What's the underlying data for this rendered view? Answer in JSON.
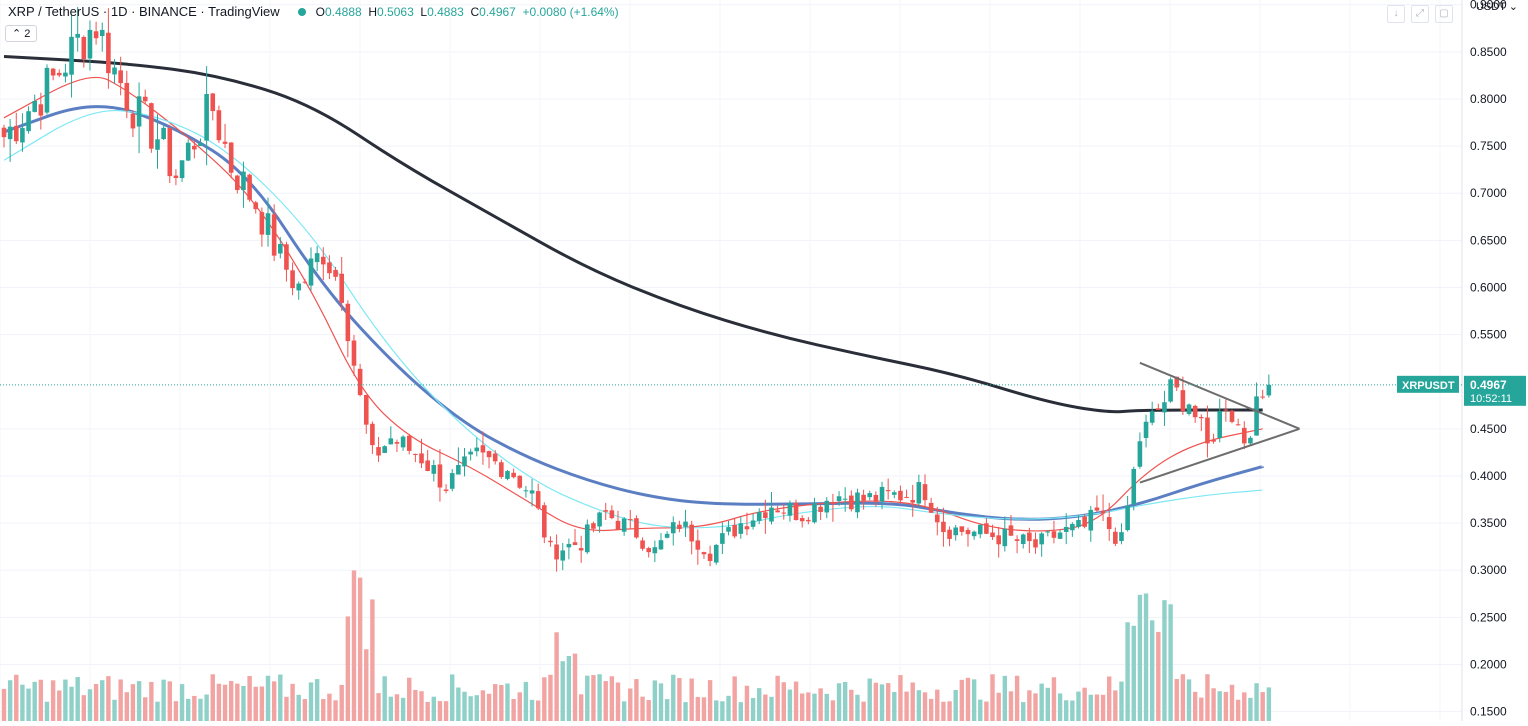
{
  "header": {
    "symbol": "XRP / TetherUS · 1D · BINANCE · TradingView",
    "ohlc": {
      "o": "0.4888",
      "h": "0.5063",
      "l": "0.4883",
      "c": "0.4967",
      "chg": "+0.0080 (+1.64%)"
    },
    "indicator_badge": "2",
    "currency": "USDT",
    "icons": [
      "arrow-down-icon",
      "expand-icon",
      "square-icon"
    ]
  },
  "price_label": {
    "name": "XRPUSDT",
    "value": "0.4967",
    "countdown": "10:52:11"
  },
  "colors": {
    "up": "#26a69a",
    "down": "#ef5350",
    "vol_up": "#8fd1c9",
    "vol_down": "#f2a4a3",
    "ma_dark": "#2a2e39",
    "ma_blue": "#5b7fc2",
    "ma_red": "#ef5350",
    "ma_cyan": "#7de8f5",
    "label_bg": "#26a69a"
  },
  "chart_data": {
    "type": "candlestick",
    "timeframe": "1D",
    "ylim": [
      0.14,
      0.905
    ],
    "yticks": [
      "0.9000",
      "0.8500",
      "0.8000",
      "0.7500",
      "0.7000",
      "0.6500",
      "0.6000",
      "0.5500",
      "0.4500",
      "0.4000",
      "0.3500",
      "0.3000",
      "0.2500",
      "0.2000",
      "0.1500"
    ],
    "last_price": 0.4967,
    "anchors": [
      [
        0,
        0.76
      ],
      [
        8,
        0.82
      ],
      [
        12,
        0.86
      ],
      [
        15,
        0.88
      ],
      [
        18,
        0.83
      ],
      [
        22,
        0.78
      ],
      [
        25,
        0.76
      ],
      [
        28,
        0.72
      ],
      [
        32,
        0.77
      ],
      [
        34,
        0.79
      ],
      [
        37,
        0.73
      ],
      [
        41,
        0.69
      ],
      [
        45,
        0.63
      ],
      [
        48,
        0.6
      ],
      [
        52,
        0.64
      ],
      [
        55,
        0.6
      ],
      [
        58,
        0.48
      ],
      [
        60,
        0.42
      ],
      [
        63,
        0.44
      ],
      [
        68,
        0.42
      ],
      [
        72,
        0.39
      ],
      [
        77,
        0.42
      ],
      [
        82,
        0.41
      ],
      [
        86,
        0.38
      ],
      [
        89,
        0.32
      ],
      [
        94,
        0.33
      ],
      [
        98,
        0.36
      ],
      [
        103,
        0.34
      ],
      [
        106,
        0.32
      ],
      [
        110,
        0.35
      ],
      [
        115,
        0.32
      ],
      [
        120,
        0.35
      ],
      [
        125,
        0.37
      ],
      [
        130,
        0.36
      ],
      [
        135,
        0.38
      ],
      [
        140,
        0.375
      ],
      [
        146,
        0.38
      ],
      [
        150,
        0.385
      ],
      [
        153,
        0.345
      ],
      [
        158,
        0.34
      ],
      [
        163,
        0.335
      ],
      [
        168,
        0.325
      ],
      [
        172,
        0.34
      ],
      [
        176,
        0.345
      ],
      [
        178,
        0.36
      ],
      [
        182,
        0.33
      ],
      [
        185,
        0.44
      ],
      [
        188,
        0.47
      ],
      [
        190,
        0.49
      ],
      [
        193,
        0.48
      ],
      [
        196,
        0.43
      ],
      [
        199,
        0.48
      ],
      [
        202,
        0.44
      ],
      [
        204,
        0.47
      ],
      [
        206,
        0.4967
      ]
    ],
    "ma_series": [
      {
        "period": "long",
        "color": "#2a2e39",
        "points": [
          [
            0,
            0.845
          ],
          [
            20,
            0.838
          ],
          [
            35,
            0.825
          ],
          [
            50,
            0.795
          ],
          [
            65,
            0.73
          ],
          [
            80,
            0.675
          ],
          [
            95,
            0.62
          ],
          [
            110,
            0.58
          ],
          [
            125,
            0.55
          ],
          [
            140,
            0.528
          ],
          [
            155,
            0.508
          ],
          [
            170,
            0.478
          ],
          [
            180,
            0.467
          ],
          [
            185,
            0.47
          ],
          [
            205,
            0.47
          ]
        ]
      },
      {
        "period": "mid",
        "color": "#5b7fc2",
        "points": [
          [
            0,
            0.765
          ],
          [
            15,
            0.8
          ],
          [
            28,
            0.77
          ],
          [
            40,
            0.72
          ],
          [
            52,
            0.6
          ],
          [
            64,
            0.515
          ],
          [
            75,
            0.455
          ],
          [
            85,
            0.42
          ],
          [
            95,
            0.395
          ],
          [
            105,
            0.378
          ],
          [
            115,
            0.37
          ],
          [
            130,
            0.37
          ],
          [
            145,
            0.372
          ],
          [
            155,
            0.36
          ],
          [
            165,
            0.353
          ],
          [
            175,
            0.356
          ],
          [
            185,
            0.37
          ],
          [
            195,
            0.392
          ],
          [
            205,
            0.41
          ]
        ]
      },
      {
        "period": "short",
        "color": "#ef5350",
        "points": [
          [
            0,
            0.78
          ],
          [
            14,
            0.83
          ],
          [
            20,
            0.81
          ],
          [
            30,
            0.76
          ],
          [
            40,
            0.7
          ],
          [
            50,
            0.6
          ],
          [
            58,
            0.49
          ],
          [
            66,
            0.44
          ],
          [
            76,
            0.41
          ],
          [
            86,
            0.37
          ],
          [
            94,
            0.34
          ],
          [
            104,
            0.345
          ],
          [
            114,
            0.345
          ],
          [
            124,
            0.365
          ],
          [
            140,
            0.375
          ],
          [
            150,
            0.37
          ],
          [
            160,
            0.345
          ],
          [
            170,
            0.34
          ],
          [
            178,
            0.35
          ],
          [
            186,
            0.405
          ],
          [
            194,
            0.435
          ],
          [
            205,
            0.45
          ]
        ]
      },
      {
        "period": "medium",
        "color": "#7de8f5",
        "points": [
          [
            0,
            0.735
          ],
          [
            14,
            0.79
          ],
          [
            24,
            0.785
          ],
          [
            36,
            0.75
          ],
          [
            50,
            0.66
          ],
          [
            62,
            0.54
          ],
          [
            74,
            0.455
          ],
          [
            86,
            0.395
          ],
          [
            96,
            0.365
          ],
          [
            106,
            0.345
          ],
          [
            118,
            0.345
          ],
          [
            128,
            0.36
          ],
          [
            142,
            0.37
          ],
          [
            152,
            0.36
          ],
          [
            164,
            0.353
          ],
          [
            176,
            0.357
          ],
          [
            186,
            0.37
          ],
          [
            196,
            0.38
          ],
          [
            205,
            0.385
          ]
        ]
      }
    ],
    "triangle": {
      "upper": [
        [
          185,
          0.52
        ],
        [
          211,
          0.45
        ]
      ],
      "lower": [
        [
          185,
          0.393
        ],
        [
          211,
          0.45
        ]
      ]
    },
    "volume_axis_max": 0.34
  }
}
